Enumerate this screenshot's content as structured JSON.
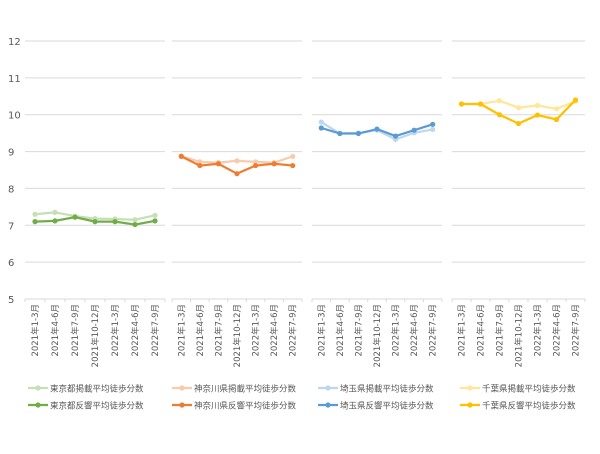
{
  "chart_data": {
    "type": "line",
    "title": "",
    "ylim": [
      5,
      12
    ],
    "yticks": [
      "5",
      "6",
      "7",
      "8",
      "9",
      "10",
      "11",
      "12"
    ],
    "categories": [
      "2021年1-3月",
      "2021年4-6月",
      "2021年7-9月",
      "2021年10-12月",
      "2022年1-3月",
      "2022年4-6月",
      "2022年7-9月"
    ],
    "grid": true,
    "legend_placement": "bottom",
    "panels": [
      {
        "series": [
          {
            "name": "東京都掲載平均徒歩分数",
            "color": "#c5e0b4",
            "values": [
              7.3,
              7.35,
              7.25,
              7.18,
              7.17,
              7.15,
              7.27
            ]
          },
          {
            "name": "東京都反響平均徒歩分数",
            "color": "#70ad47",
            "values": [
              7.1,
              7.12,
              7.22,
              7.1,
              7.1,
              7.02,
              7.12
            ]
          }
        ]
      },
      {
        "series": [
          {
            "name": "神奈川県掲載平均徒歩分数",
            "color": "#f8cbad",
            "values": [
              8.88,
              8.72,
              8.7,
              8.75,
              8.72,
              8.7,
              8.87
            ]
          },
          {
            "name": "神奈川県反響平均徒歩分数",
            "color": "#ed7d31",
            "values": [
              8.87,
              8.62,
              8.67,
              8.4,
              8.62,
              8.67,
              8.62
            ]
          }
        ]
      },
      {
        "series": [
          {
            "name": "埼玉県掲載平均徒歩分数",
            "color": "#bdd7ee",
            "values": [
              9.8,
              9.49,
              9.5,
              9.58,
              9.33,
              9.51,
              9.6
            ]
          },
          {
            "name": "埼玉県反響平均徒歩分数",
            "color": "#5b9bd5",
            "values": [
              9.64,
              9.49,
              9.49,
              9.61,
              9.42,
              9.58,
              9.74
            ]
          }
        ]
      },
      {
        "series": [
          {
            "name": "千葉県掲載平均徒歩分数",
            "color": "#ffe699",
            "values": [
              10.29,
              10.29,
              10.38,
              10.19,
              10.25,
              10.16,
              10.36
            ]
          },
          {
            "name": "千葉県反響平均徒歩分数",
            "color": "#ffc000",
            "values": [
              10.29,
              10.29,
              10.0,
              9.76,
              9.99,
              9.87,
              10.4
            ]
          }
        ]
      }
    ]
  }
}
